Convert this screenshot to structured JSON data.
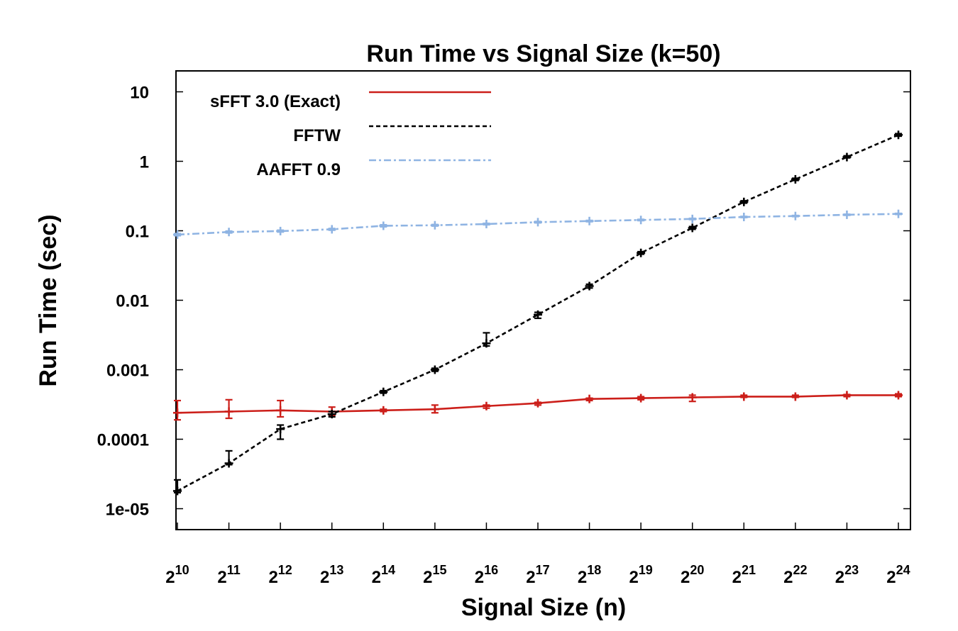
{
  "chart_data": {
    "type": "line",
    "title": "Run Time vs Signal Size (k=50)",
    "xlabel": "Signal Size (n)",
    "ylabel": "Run Time (sec)",
    "yscale": "log",
    "ylim": [
      5e-06,
      20
    ],
    "x_exponents": [
      10,
      11,
      12,
      13,
      14,
      15,
      16,
      17,
      18,
      19,
      20,
      21,
      22,
      23,
      24
    ],
    "x_tick_base": "2",
    "y_ticks": [
      {
        "value": 1e-05,
        "label": "1e-05"
      },
      {
        "value": 0.0001,
        "label": "0.0001"
      },
      {
        "value": 0.001,
        "label": "0.001"
      },
      {
        "value": 0.01,
        "label": "0.01"
      },
      {
        "value": 0.1,
        "label": "0.1"
      },
      {
        "value": 1,
        "label": "1"
      },
      {
        "value": 10,
        "label": "10"
      }
    ],
    "legend_position": "top-left",
    "series": [
      {
        "name": "sFFT 3.0 (Exact)",
        "color": "#cc1f1a",
        "dash": "solid",
        "values": [
          0.00024,
          0.00025,
          0.00026,
          0.00025,
          0.00026,
          0.00027,
          0.0003,
          0.00033,
          0.00038,
          0.00039,
          0.0004,
          0.00041,
          0.00041,
          0.00043,
          0.00043
        ],
        "err_low": [
          0.00019,
          0.0002,
          0.00021,
          0.00022,
          0.00025,
          0.00024,
          0.00028,
          0.00031,
          0.00036,
          0.00037,
          0.00035,
          0.0004,
          0.0004,
          0.00041,
          0.00041
        ],
        "err_high": [
          0.00036,
          0.00037,
          0.00036,
          0.00029,
          0.00027,
          0.00031,
          0.00031,
          0.00034,
          0.00039,
          0.00041,
          0.00043,
          0.00043,
          0.00043,
          0.00044,
          0.00045
        ]
      },
      {
        "name": "FFTW",
        "color": "#000000",
        "dash": "dashed",
        "values": [
          1.8e-05,
          4.5e-05,
          0.00014,
          0.00023,
          0.00048,
          0.001,
          0.0024,
          0.0062,
          0.016,
          0.048,
          0.11,
          0.26,
          0.55,
          1.15,
          2.4
        ],
        "err_low": [
          1.7e-05,
          4.3e-05,
          0.0001,
          0.00021,
          0.00046,
          0.00095,
          0.0022,
          0.0055,
          0.015,
          0.046,
          0.105,
          0.25,
          0.53,
          1.12,
          2.3
        ],
        "err_high": [
          2.6e-05,
          6.8e-05,
          0.00016,
          0.00025,
          0.0005,
          0.00105,
          0.0034,
          0.0067,
          0.017,
          0.05,
          0.115,
          0.27,
          0.57,
          1.2,
          2.5
        ]
      },
      {
        "name": "AAFFT 0.9",
        "color": "#8fb4e3",
        "dash": "dashdot",
        "values": [
          0.088,
          0.096,
          0.099,
          0.105,
          0.118,
          0.12,
          0.125,
          0.133,
          0.138,
          0.143,
          0.148,
          0.158,
          0.163,
          0.17,
          0.175
        ],
        "err_low": [
          0.085,
          0.093,
          0.096,
          0.102,
          0.114,
          0.117,
          0.122,
          0.13,
          0.135,
          0.14,
          0.145,
          0.155,
          0.16,
          0.167,
          0.172
        ],
        "err_high": [
          0.091,
          0.099,
          0.102,
          0.108,
          0.122,
          0.123,
          0.128,
          0.136,
          0.141,
          0.146,
          0.151,
          0.161,
          0.166,
          0.173,
          0.178
        ]
      }
    ]
  }
}
